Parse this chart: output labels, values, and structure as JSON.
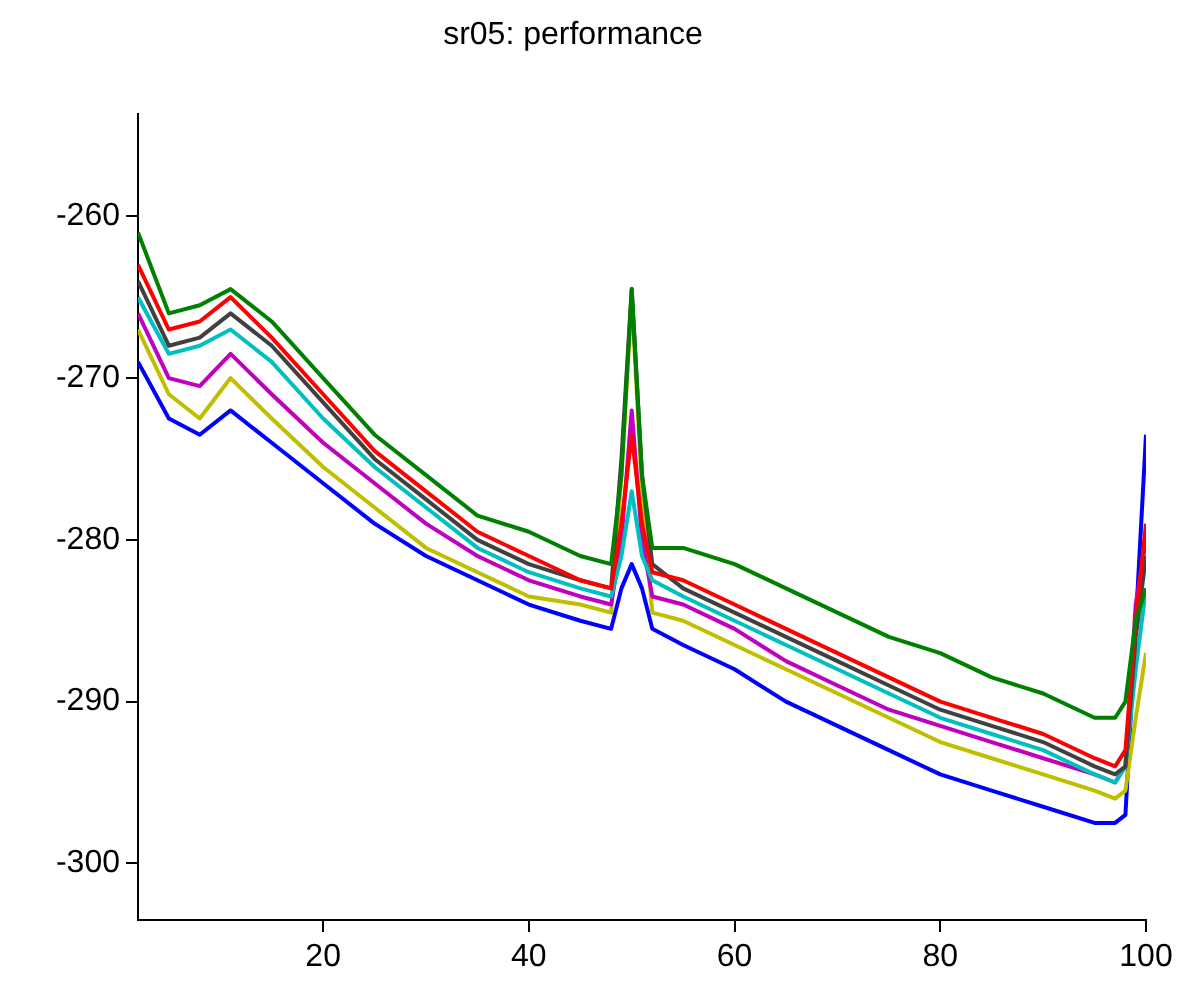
{
  "chart_data": {
    "type": "line",
    "title": "sr05: performance",
    "x": [
      2,
      5,
      8,
      11,
      15,
      20,
      25,
      30,
      35,
      40,
      45,
      48,
      49,
      50,
      51,
      52,
      55,
      60,
      65,
      70,
      75,
      80,
      85,
      90,
      95,
      97,
      98,
      99,
      100
    ],
    "xlim": [
      2,
      100
    ],
    "xticks": [
      20,
      40,
      60,
      80,
      100
    ],
    "ylim": [
      -303.5,
      -253.7
    ],
    "yticks": [
      -300,
      -290,
      -280,
      -270,
      -260
    ],
    "grid": false,
    "legend": false,
    "marker": "none",
    "line_style": "solid",
    "series": [
      {
        "color": "#008000",
        "values": [
          -261,
          -266,
          -265.5,
          -264.5,
          -266.5,
          -270,
          -273.5,
          -276,
          -278.5,
          -279.5,
          -281,
          -281.5,
          -276,
          -264.5,
          -276,
          -280.5,
          -280.5,
          -281.5,
          -283,
          -284.5,
          -286,
          -287,
          -288.5,
          -289.5,
          -291,
          -291,
          -290,
          -285,
          -283
        ]
      },
      {
        "color": "#ff0000",
        "values": [
          -263,
          -267,
          -266.5,
          -265,
          -267.5,
          -271,
          -274.5,
          -277,
          -279.5,
          -281,
          -282.5,
          -283,
          -279,
          -273.5,
          -279,
          -282,
          -282.5,
          -284,
          -285.5,
          -287,
          -288.5,
          -290,
          -291,
          -292,
          -293.5,
          -294,
          -293,
          -285,
          -279
        ]
      },
      {
        "color": "#404040",
        "values": [
          -264,
          -268,
          -267.5,
          -266,
          -268,
          -271.5,
          -275,
          -277.5,
          -280,
          -281.5,
          -282.5,
          -283,
          -275,
          -264.5,
          -276,
          -281.5,
          -283,
          -284.5,
          -286,
          -287.5,
          -289,
          -290.5,
          -291.5,
          -292.5,
          -294,
          -294.5,
          -294,
          -286,
          -281
        ]
      },
      {
        "color": "#00bfbf",
        "values": [
          -265,
          -268.5,
          -268,
          -267,
          -269,
          -272.5,
          -275.5,
          -278,
          -280.5,
          -282,
          -283,
          -283.5,
          -281,
          -277,
          -281,
          -282.5,
          -283.5,
          -285,
          -286.5,
          -288,
          -289.5,
          -291,
          -292,
          -293,
          -294.5,
          -295,
          -294,
          -288,
          -283
        ]
      },
      {
        "color": "#bf00bf",
        "values": [
          -266,
          -270,
          -270.5,
          -268.5,
          -271,
          -274,
          -276.5,
          -279,
          -281,
          -282.5,
          -283.5,
          -284,
          -280,
          -272,
          -280,
          -283.5,
          -284,
          -285.5,
          -287.5,
          -289,
          -290.5,
          -291.5,
          -292.5,
          -293.5,
          -294.5,
          -295,
          -294,
          -284,
          -280
        ]
      },
      {
        "color": "#bfbf00",
        "values": [
          -267,
          -271,
          -272.5,
          -270,
          -272.5,
          -275.5,
          -278,
          -280.5,
          -282,
          -283.5,
          -284,
          -284.5,
          -276,
          -265,
          -277,
          -284.5,
          -285,
          -286.5,
          -288,
          -289.5,
          -291,
          -292.5,
          -293.5,
          -294.5,
          -295.5,
          -296,
          -295.5,
          -291,
          -287
        ]
      },
      {
        "color": "#0000ff",
        "values": [
          -269,
          -272.5,
          -273.5,
          -272,
          -274,
          -276.5,
          -279,
          -281,
          -282.5,
          -284,
          -285,
          -285.5,
          -283,
          -281.5,
          -283,
          -285.5,
          -286.5,
          -288,
          -290,
          -291.5,
          -293,
          -294.5,
          -295.5,
          -296.5,
          -297.5,
          -297.5,
          -297,
          null,
          -273.5
        ]
      }
    ]
  }
}
